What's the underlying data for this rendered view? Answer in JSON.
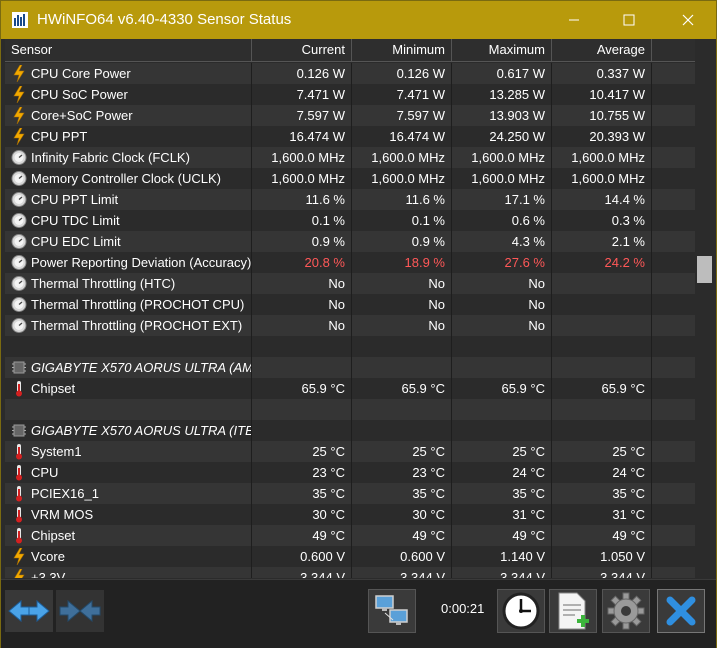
{
  "window": {
    "title": "HWiNFO64 v6.40-4330 Sensor Status"
  },
  "columns": [
    "Sensor",
    "Current",
    "Minimum",
    "Maximum",
    "Average"
  ],
  "rows": [
    {
      "type": "sensor",
      "icon": "bolt",
      "name": "CPU Core Power",
      "cur": "0.126 W",
      "min": "0.126 W",
      "max": "0.617 W",
      "avg": "0.337 W"
    },
    {
      "type": "sensor",
      "icon": "bolt",
      "name": "CPU SoC Power",
      "cur": "7.471 W",
      "min": "7.471 W",
      "max": "13.285 W",
      "avg": "10.417 W"
    },
    {
      "type": "sensor",
      "icon": "bolt",
      "name": "Core+SoC Power",
      "cur": "7.597 W",
      "min": "7.597 W",
      "max": "13.903 W",
      "avg": "10.755 W"
    },
    {
      "type": "sensor",
      "icon": "bolt",
      "name": "CPU PPT",
      "cur": "16.474 W",
      "min": "16.474 W",
      "max": "24.250 W",
      "avg": "20.393 W"
    },
    {
      "type": "sensor",
      "icon": "gauge",
      "name": "Infinity Fabric Clock (FCLK)",
      "cur": "1,600.0 MHz",
      "min": "1,600.0 MHz",
      "max": "1,600.0 MHz",
      "avg": "1,600.0 MHz"
    },
    {
      "type": "sensor",
      "icon": "gauge",
      "name": "Memory Controller Clock (UCLK)",
      "cur": "1,600.0 MHz",
      "min": "1,600.0 MHz",
      "max": "1,600.0 MHz",
      "avg": "1,600.0 MHz"
    },
    {
      "type": "sensor",
      "icon": "gauge",
      "name": "CPU PPT Limit",
      "cur": "11.6 %",
      "min": "11.6 %",
      "max": "17.1 %",
      "avg": "14.4 %"
    },
    {
      "type": "sensor",
      "icon": "gauge",
      "name": "CPU TDC Limit",
      "cur": "0.1 %",
      "min": "0.1 %",
      "max": "0.6 %",
      "avg": "0.3 %"
    },
    {
      "type": "sensor",
      "icon": "gauge",
      "name": "CPU EDC Limit",
      "cur": "0.9 %",
      "min": "0.9 %",
      "max": "4.3 %",
      "avg": "2.1 %"
    },
    {
      "type": "sensor",
      "icon": "gauge",
      "name": "Power Reporting Deviation (Accuracy)",
      "cur": "20.8 %",
      "min": "18.9 %",
      "max": "27.6 %",
      "avg": "24.2 %",
      "alert": true
    },
    {
      "type": "sensor",
      "icon": "gauge",
      "name": "Thermal Throttling (HTC)",
      "cur": "No",
      "min": "No",
      "max": "No",
      "avg": ""
    },
    {
      "type": "sensor",
      "icon": "gauge",
      "name": "Thermal Throttling (PROCHOT CPU)",
      "cur": "No",
      "min": "No",
      "max": "No",
      "avg": ""
    },
    {
      "type": "sensor",
      "icon": "gauge",
      "name": "Thermal Throttling (PROCHOT EXT)",
      "cur": "No",
      "min": "No",
      "max": "No",
      "avg": ""
    },
    {
      "type": "blank"
    },
    {
      "type": "group",
      "icon": "chip",
      "name": "GIGABYTE X570 AORUS ULTRA (AM..."
    },
    {
      "type": "sensor",
      "icon": "thermo",
      "name": "Chipset",
      "cur": "65.9 °C",
      "min": "65.9 °C",
      "max": "65.9 °C",
      "avg": "65.9 °C"
    },
    {
      "type": "blank"
    },
    {
      "type": "group",
      "icon": "chip",
      "name": "GIGABYTE X570 AORUS ULTRA (ITE..."
    },
    {
      "type": "sensor",
      "icon": "thermo",
      "name": "System1",
      "cur": "25 °C",
      "min": "25 °C",
      "max": "25 °C",
      "avg": "25 °C"
    },
    {
      "type": "sensor",
      "icon": "thermo",
      "name": "CPU",
      "cur": "23 °C",
      "min": "23 °C",
      "max": "24 °C",
      "avg": "24 °C"
    },
    {
      "type": "sensor",
      "icon": "thermo",
      "name": "PCIEX16_1",
      "cur": "35 °C",
      "min": "35 °C",
      "max": "35 °C",
      "avg": "35 °C"
    },
    {
      "type": "sensor",
      "icon": "thermo",
      "name": "VRM MOS",
      "cur": "30 °C",
      "min": "30 °C",
      "max": "31 °C",
      "avg": "31 °C"
    },
    {
      "type": "sensor",
      "icon": "thermo",
      "name": "Chipset",
      "cur": "49 °C",
      "min": "49 °C",
      "max": "49 °C",
      "avg": "49 °C"
    },
    {
      "type": "sensor",
      "icon": "bolt",
      "name": "Vcore",
      "cur": "0.600 V",
      "min": "0.600 V",
      "max": "1.140 V",
      "avg": "1.050 V"
    },
    {
      "type": "sensor",
      "icon": "bolt",
      "name": "+3.3V",
      "cur": "3.344 V",
      "min": "3.344 V",
      "max": "3.344 V",
      "avg": "3.344 V"
    }
  ],
  "footer": {
    "timer": "0:00:21",
    "buttons": [
      "expand-arrows-icon",
      "collapse-arrows-icon",
      "network-computers-icon",
      "clock-icon",
      "report-add-icon",
      "settings-gear-icon",
      "close-x-icon"
    ]
  },
  "colors": {
    "titlebar": "#b89a0c",
    "alert": "#ff5858",
    "bolt": "#f2a900",
    "thermo": "#d42020"
  }
}
